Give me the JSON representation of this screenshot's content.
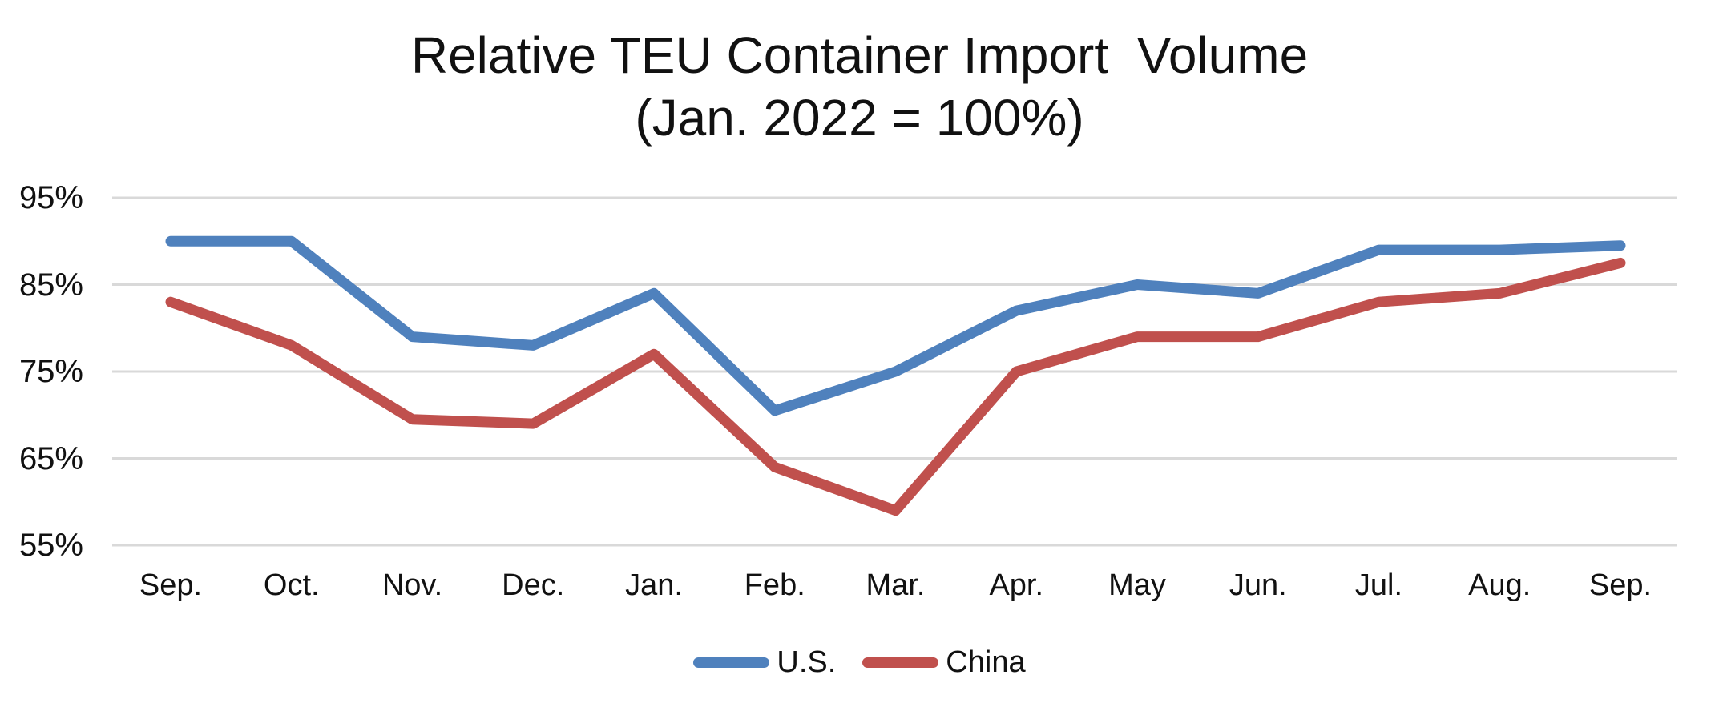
{
  "title": {
    "line1": "Relative TEU Container Import  Volume",
    "line2": "(Jan. 2022 = 100%)"
  },
  "chart_data": {
    "type": "line",
    "title": "Relative TEU Container Import Volume (Jan. 2022 = 100%)",
    "categories": [
      "Sep.",
      "Oct.",
      "Nov.",
      "Dec.",
      "Jan.",
      "Feb.",
      "Mar.",
      "Apr.",
      "May",
      "Jun.",
      "Jul.",
      "Aug.",
      "Sep."
    ],
    "series": [
      {
        "name": "U.S.",
        "color": "#4F81BD",
        "values": [
          90,
          90,
          79,
          78,
          84,
          70.5,
          75,
          82,
          85,
          84,
          89,
          89,
          89.5
        ]
      },
      {
        "name": "China",
        "color": "#C0504D",
        "values": [
          83,
          78,
          69.5,
          69,
          77,
          64,
          59,
          75,
          79,
          79,
          83,
          84,
          87.5
        ]
      }
    ],
    "xlabel": "",
    "ylabel": "",
    "y_ticks": [
      95,
      85,
      75,
      65,
      55
    ],
    "y_tick_suffix": "%",
    "ylim": [
      55,
      95
    ],
    "grid": true,
    "gridline_color": "#D9D9D9",
    "legend_position": "bottom",
    "line_width": 13
  }
}
